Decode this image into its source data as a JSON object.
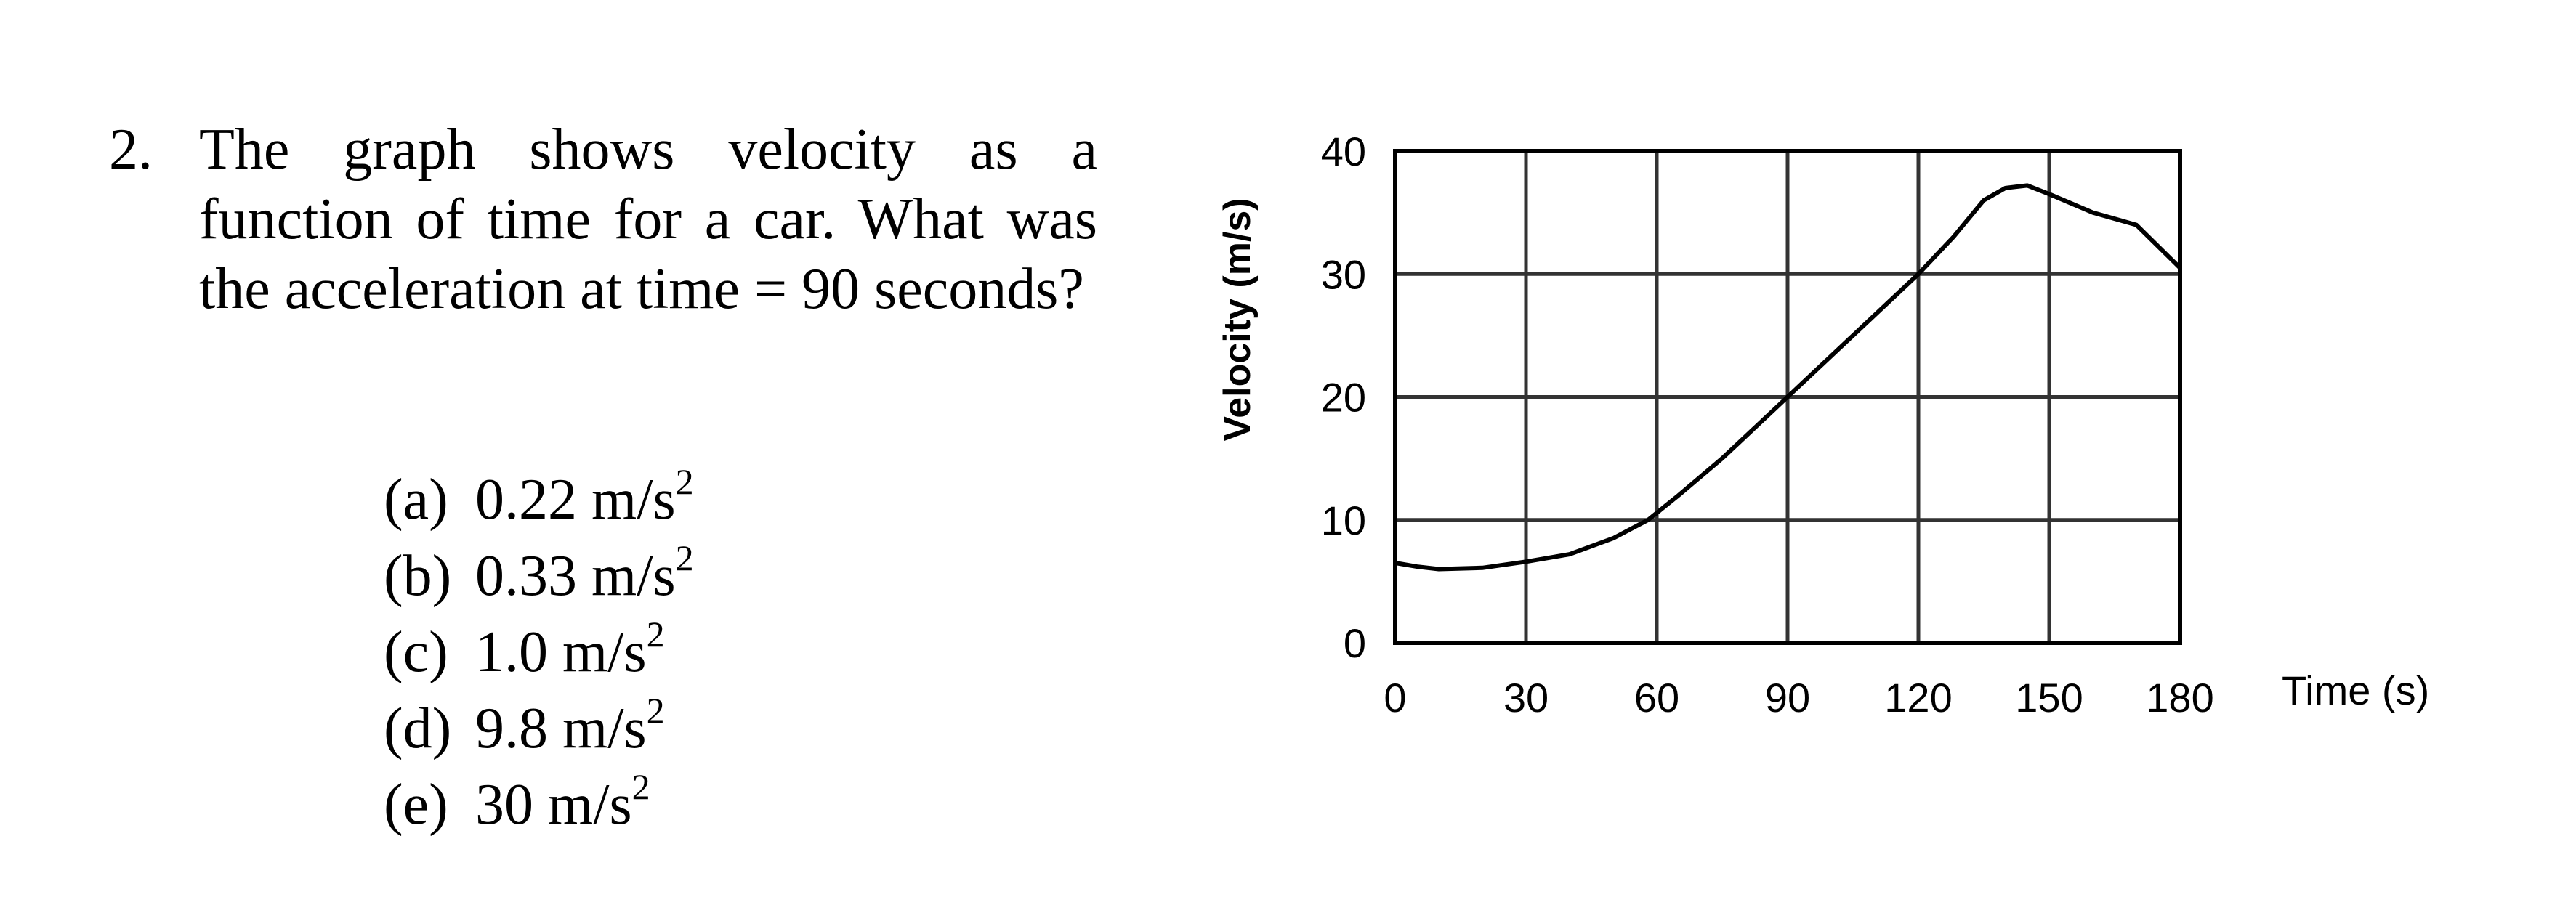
{
  "question": {
    "number": "2.",
    "text": "The graph shows velocity as a function of time for a car.  What was the acceleration at time = 90 seconds?",
    "choices": [
      {
        "letter": "(a)",
        "value": "0.22 m/s",
        "exponent": "2"
      },
      {
        "letter": "(b)",
        "value": "0.33 m/s",
        "exponent": "2"
      },
      {
        "letter": "(c)",
        "value": "1.0 m/s",
        "exponent": "2"
      },
      {
        "letter": "(d)",
        "value": "9.8 m/s",
        "exponent": "2"
      },
      {
        "letter": "(e)",
        "value": "30 m/s",
        "exponent": "2"
      }
    ]
  },
  "chart_data": {
    "type": "line",
    "title": "",
    "xlabel": "Time (s)",
    "ylabel": "Velocity (m/s)",
    "xlim": [
      0,
      180
    ],
    "ylim": [
      0,
      40
    ],
    "xticks": [
      0,
      30,
      60,
      90,
      120,
      150,
      180
    ],
    "yticks": [
      0,
      10,
      20,
      30,
      40
    ],
    "grid": true,
    "line_color": "#000000",
    "grid_color": "#333333",
    "series": [
      {
        "x": [
          0,
          5,
          10,
          20,
          30,
          40,
          50,
          58,
          65,
          75,
          90,
          105,
          120,
          128,
          135,
          140,
          145,
          150,
          160,
          170,
          180
        ],
        "y": [
          6.5,
          6.2,
          6.0,
          6.1,
          6.6,
          7.2,
          8.5,
          10.0,
          12.0,
          15.0,
          20.0,
          25.0,
          30.0,
          33.0,
          36.0,
          37.0,
          37.2,
          36.5,
          35.0,
          34.0,
          30.5
        ]
      }
    ]
  }
}
